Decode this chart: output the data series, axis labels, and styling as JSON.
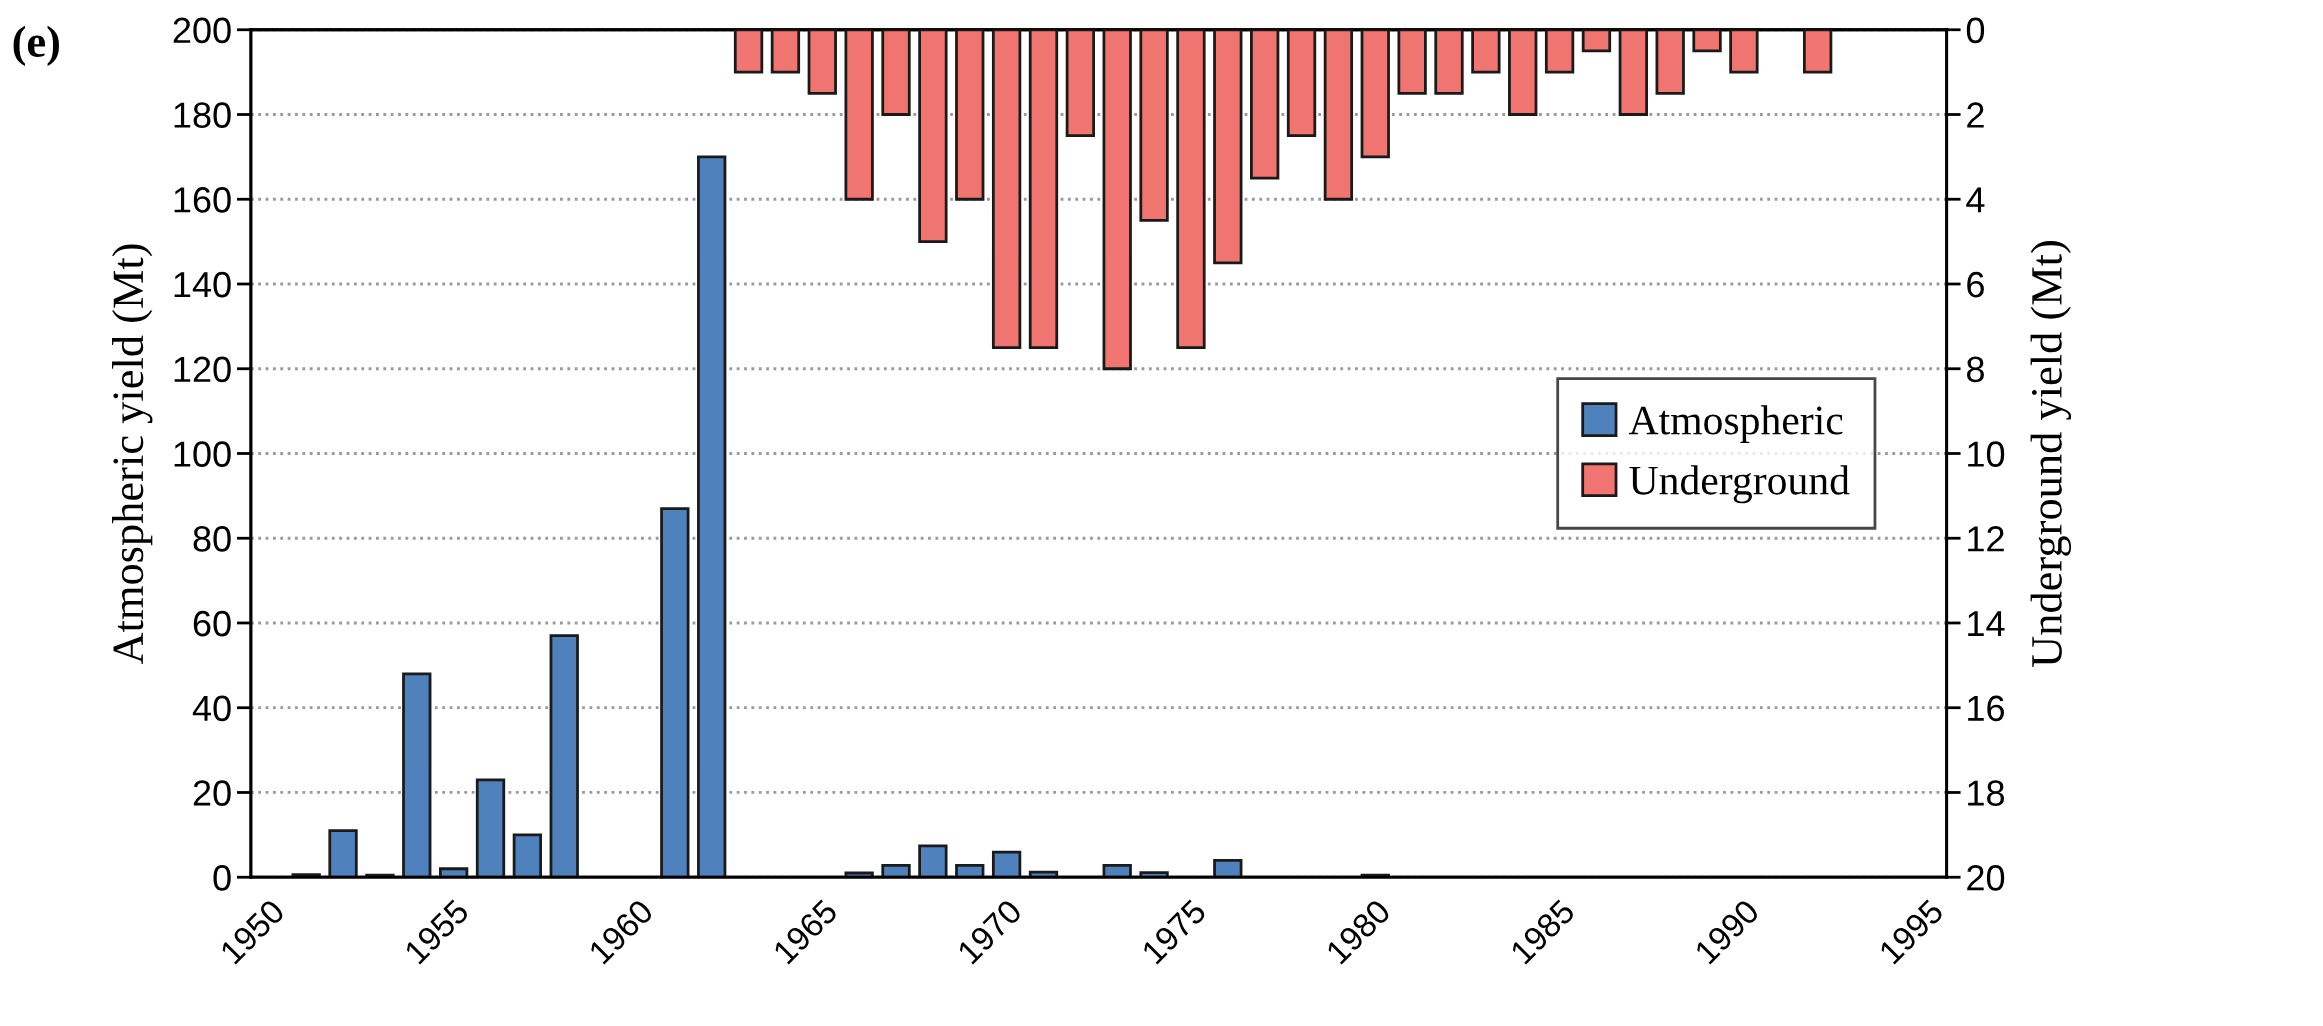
{
  "chart_data": {
    "type": "bar",
    "categories": [
      "1950",
      null,
      null,
      null,
      null,
      "1955",
      null,
      null,
      null,
      null,
      "1960",
      null,
      null,
      null,
      null,
      "1965",
      null,
      null,
      null,
      null,
      "1970",
      null,
      null,
      null,
      null,
      "1975",
      null,
      null,
      null,
      null,
      "1980",
      null,
      null,
      null,
      null,
      "1985",
      null,
      null,
      null,
      null,
      "1990",
      null,
      null,
      null,
      null,
      "1995"
    ],
    "series": [
      {
        "name": "Atmospheric",
        "color": "#4f81bd",
        "values": [
          null,
          0.6,
          11,
          0.5,
          48,
          2,
          23,
          10,
          57,
          null,
          null,
          87,
          170,
          null,
          null,
          null,
          1,
          2.8,
          7.4,
          2.8,
          5.9,
          1.2,
          null,
          2.8,
          1.1,
          null,
          4,
          null,
          null,
          null,
          0.5,
          null,
          null,
          null,
          null,
          null,
          null,
          null,
          null,
          null,
          null,
          null,
          null,
          null,
          null,
          null
        ]
      },
      {
        "name": "Underground",
        "color": "#f07470",
        "axis": "y2",
        "values": [
          null,
          null,
          null,
          null,
          null,
          null,
          null,
          null,
          null,
          null,
          null,
          null,
          null,
          1,
          1,
          1.5,
          4,
          2,
          5,
          4,
          7.5,
          7.5,
          2.5,
          8,
          4.5,
          7.5,
          5.5,
          3.5,
          2.5,
          4,
          3,
          1.5,
          1.5,
          1,
          2,
          1,
          0.5,
          2,
          1.5,
          0.5,
          1,
          null,
          1,
          null,
          null,
          null
        ]
      }
    ],
    "ylabel": "Atmospheric yield (Mt)",
    "y2label": "Underground yield (Mt)",
    "ylim": [
      0,
      200
    ],
    "yticks": [
      0,
      20,
      40,
      60,
      80,
      100,
      120,
      140,
      160,
      180,
      200
    ],
    "y2lim": [
      20,
      0
    ],
    "y2ticks": [
      0,
      2,
      4,
      6,
      8,
      10,
      12,
      14,
      16,
      18,
      20
    ],
    "annotations": [
      "(e)"
    ],
    "grid": "y",
    "legend": "center right"
  }
}
